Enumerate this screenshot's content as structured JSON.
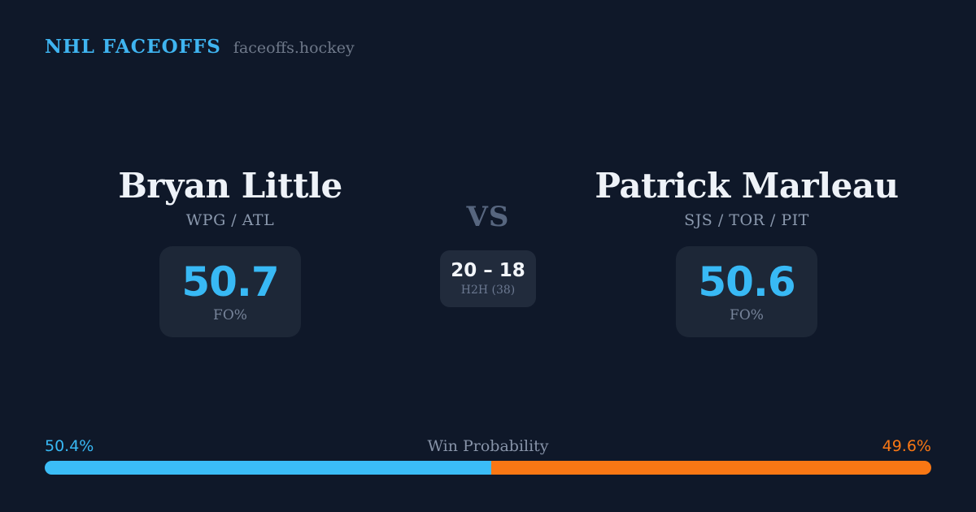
{
  "header": {
    "brand": "NHL FACEOFFS",
    "site": "faceoffs.hockey"
  },
  "matchup": {
    "vs_label": "VS",
    "h2h": {
      "score": "20 – 18",
      "label": "H2H (38)",
      "total_faceoffs": 38
    },
    "players": [
      {
        "name": "Bryan Little",
        "teams": "WPG / ATL",
        "fo_pct": "50.7",
        "stat_label": "FO%",
        "win_probability_pct": "50.4%"
      },
      {
        "name": "Patrick Marleau",
        "teams": "SJS / TOR / PIT",
        "fo_pct": "50.6",
        "stat_label": "FO%",
        "win_probability_pct": "49.6%"
      }
    ]
  },
  "win_probability": {
    "title": "Win Probability",
    "left_label": "50.4%",
    "right_label": "49.6%",
    "left_value": 50.4,
    "right_value": 49.6
  },
  "colors": {
    "background": "#0f1829",
    "panel": "#1d2737",
    "accent_blue": "#38b9f5",
    "accent_orange": "#f97714",
    "text_primary": "#eef2f8",
    "text_muted": "#8b99ae"
  },
  "chart_data": {
    "type": "bar",
    "layout": "single-stacked-horizontal-bar",
    "title": "Win Probability",
    "categories": [
      "Bryan Little",
      "Patrick Marleau"
    ],
    "values": [
      50.4,
      49.6
    ],
    "unit": "%",
    "colors": [
      "#3bbdf7",
      "#f97714"
    ],
    "annotations": [
      "50.4%",
      "49.6%"
    ],
    "supporting_stats": {
      "faceoff_pct": [
        50.7,
        50.6
      ],
      "head_to_head": {
        "left_wins": 20,
        "right_wins": 18,
        "total": 38
      }
    }
  }
}
